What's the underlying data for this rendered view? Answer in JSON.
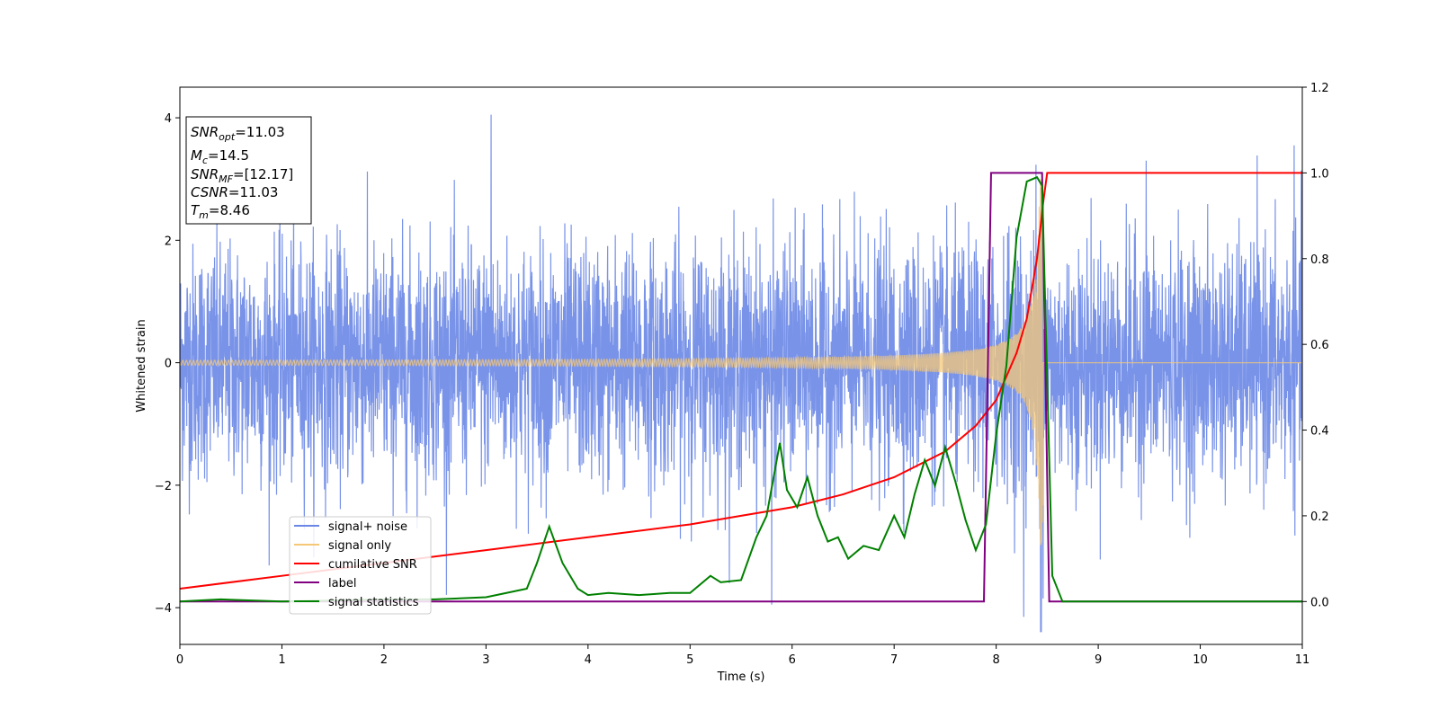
{
  "chart_data": {
    "type": "line",
    "xlabel": "Time (s)",
    "ylabel": "Whitened strain",
    "xlim": [
      0,
      11
    ],
    "ylim": [
      -4.6,
      4.5
    ],
    "y2lim": [
      -0.1,
      1.2
    ],
    "xticks": [
      "0",
      "1",
      "2",
      "3",
      "4",
      "5",
      "6",
      "7",
      "8",
      "9",
      "10",
      "11"
    ],
    "yticks": [
      "4",
      "2",
      "0",
      "−2",
      "−4"
    ],
    "y2ticks": [
      "1.2",
      "1.0",
      "0.8",
      "0.6",
      "0.4",
      "0.2",
      "0.0"
    ],
    "grid": false,
    "legend_position": "lower-left",
    "legend": [
      "signal+ noise",
      "signal only",
      "cumilative SNR",
      "label",
      "signal statistics"
    ],
    "colors": {
      "signal_noise": "#6a87e6",
      "signal_only": "#f5c878",
      "cumulative_snr": "#ff0000",
      "label": "#800080",
      "signal_statistics": "#008000"
    },
    "series": [
      {
        "name": "signal+ noise",
        "axis": "left",
        "description_free": true,
        "noise_sigma": 0.95,
        "spikes": [
          [
            3.05,
            4.05
          ],
          [
            9.47,
            3.3
          ],
          [
            10.92,
            3.55
          ],
          [
            8.27,
            -4.15
          ],
          [
            5.8,
            -3.95
          ]
        ]
      },
      {
        "name": "signal only",
        "axis": "left",
        "chirp_start": 0,
        "chirp_end": 8.46,
        "amp_start": 0.02,
        "amp_end": 3.0
      },
      {
        "name": "cumilative SNR",
        "axis": "right",
        "x": [
          0,
          1,
          2,
          3,
          4,
          5,
          5.5,
          6,
          6.5,
          7,
          7.5,
          7.8,
          8.0,
          8.2,
          8.3,
          8.4,
          8.46,
          8.5,
          11
        ],
        "y": [
          0.03,
          0.06,
          0.09,
          0.12,
          0.15,
          0.18,
          0.2,
          0.22,
          0.25,
          0.29,
          0.35,
          0.41,
          0.47,
          0.58,
          0.66,
          0.8,
          0.93,
          1.0,
          1.0
        ]
      },
      {
        "name": "label",
        "axis": "right",
        "x": [
          0,
          7.88,
          7.95,
          8.45,
          8.52,
          11
        ],
        "y": [
          0,
          0,
          1.0,
          1.0,
          0,
          0
        ]
      },
      {
        "name": "signal statistics",
        "axis": "right",
        "x": [
          0,
          0.4,
          1,
          2,
          2.5,
          3,
          3.2,
          3.4,
          3.5,
          3.62,
          3.75,
          3.9,
          4.0,
          4.2,
          4.5,
          4.8,
          5.0,
          5.2,
          5.3,
          5.5,
          5.65,
          5.75,
          5.88,
          5.95,
          6.05,
          6.15,
          6.25,
          6.35,
          6.45,
          6.55,
          6.7,
          6.85,
          7.0,
          7.1,
          7.2,
          7.3,
          7.4,
          7.5,
          7.6,
          7.7,
          7.8,
          7.9,
          8.0,
          8.1,
          8.2,
          8.3,
          8.4,
          8.45,
          8.55,
          8.65,
          11
        ],
        "y": [
          0.0,
          0.005,
          0.0,
          0.005,
          0.005,
          0.01,
          0.02,
          0.03,
          0.09,
          0.175,
          0.09,
          0.03,
          0.015,
          0.02,
          0.015,
          0.02,
          0.02,
          0.06,
          0.045,
          0.05,
          0.15,
          0.2,
          0.37,
          0.26,
          0.22,
          0.29,
          0.2,
          0.14,
          0.15,
          0.1,
          0.13,
          0.12,
          0.2,
          0.15,
          0.25,
          0.33,
          0.27,
          0.36,
          0.28,
          0.19,
          0.12,
          0.18,
          0.39,
          0.55,
          0.85,
          0.98,
          0.99,
          0.97,
          0.06,
          0.0,
          0.0
        ]
      }
    ]
  },
  "info_box": {
    "snr_opt_main": "SNR",
    "snr_opt_sub": "opt",
    "snr_opt_value": "=11.03",
    "mc_main": "M",
    "mc_sub": "c",
    "mc_value": "=14.5",
    "snr_mf_main": "SNR",
    "snr_mf_sub": "MF",
    "snr_mf_value": "=[12.17]",
    "csnr_main": "CSNR",
    "csnr_value": "=11.03",
    "tm_main": "T",
    "tm_sub": "m",
    "tm_value": "=8.46"
  }
}
